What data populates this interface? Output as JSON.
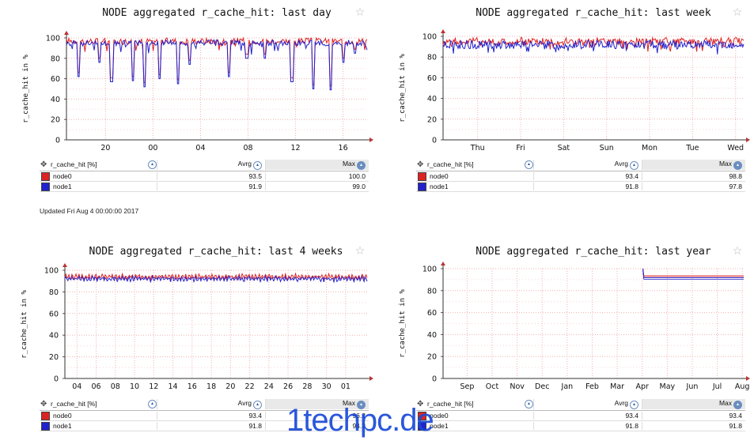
{
  "updated": "Updated Fri Aug 4 00:00:00 2017",
  "watermark": "1techpc.de",
  "legend_header": {
    "metric": "r_cache_hit [%]",
    "avg": "Avrg",
    "max": "Max"
  },
  "chart_data": [
    {
      "type": "line",
      "title": "NODE aggregated r_cache_hit: last day",
      "ylabel": "r_cache_hit in %",
      "ylim": [
        0,
        100
      ],
      "yticks": [
        "0",
        "20",
        "40",
        "60",
        "80",
        "100"
      ],
      "xticks": [
        "20",
        "00",
        "04",
        "08",
        "12",
        "16"
      ],
      "grid": true,
      "series": [
        {
          "name": "node0",
          "color": "#dd2222",
          "avg": "93.5",
          "max": "100.0",
          "base": 97,
          "lows": [
            [
              0.04,
              62
            ],
            [
              0.11,
              76
            ],
            [
              0.15,
              57
            ],
            [
              0.22,
              58
            ],
            [
              0.26,
              52
            ],
            [
              0.31,
              60
            ],
            [
              0.37,
              55
            ],
            [
              0.41,
              74
            ],
            [
              0.54,
              62
            ],
            [
              0.6,
              80
            ],
            [
              0.66,
              80
            ],
            [
              0.75,
              57
            ],
            [
              0.82,
              50
            ],
            [
              0.88,
              49
            ],
            [
              0.92,
              76
            ],
            [
              0.96,
              85
            ]
          ]
        },
        {
          "name": "node1",
          "color": "#2222cc",
          "avg": "91.9",
          "max": "99.0",
          "base": 95,
          "lows": [
            [
              0.04,
              62
            ],
            [
              0.11,
              76
            ],
            [
              0.15,
              57
            ],
            [
              0.22,
              58
            ],
            [
              0.26,
              52
            ],
            [
              0.31,
              60
            ],
            [
              0.37,
              55
            ],
            [
              0.41,
              74
            ],
            [
              0.54,
              62
            ],
            [
              0.6,
              80
            ],
            [
              0.66,
              80
            ],
            [
              0.75,
              57
            ],
            [
              0.82,
              50
            ],
            [
              0.88,
              49
            ],
            [
              0.92,
              76
            ],
            [
              0.96,
              85
            ]
          ]
        }
      ]
    },
    {
      "type": "line",
      "title": "NODE aggregated r_cache_hit: last week",
      "ylabel": "r_cache_hit in %",
      "ylim": [
        0,
        100
      ],
      "yticks": [
        "0",
        "20",
        "40",
        "60",
        "80",
        "100"
      ],
      "xticks": [
        "Thu",
        "Fri",
        "Sat",
        "Sun",
        "Mon",
        "Tue",
        "Wed"
      ],
      "grid": true,
      "series": [
        {
          "name": "node0",
          "color": "#dd2222",
          "avg": "93.4",
          "max": "98.8",
          "base": 95,
          "lows": []
        },
        {
          "name": "node1",
          "color": "#2222cc",
          "avg": "91.8",
          "max": "97.8",
          "base": 92,
          "lows": []
        }
      ]
    },
    {
      "type": "line",
      "title": "NODE aggregated r_cache_hit: last 4 weeks",
      "ylabel": "r_cache_hit in %",
      "ylim": [
        0,
        100
      ],
      "yticks": [
        "0",
        "20",
        "40",
        "60",
        "80",
        "100"
      ],
      "xticks": [
        "04",
        "06",
        "08",
        "10",
        "12",
        "14",
        "16",
        "18",
        "20",
        "22",
        "24",
        "26",
        "28",
        "30",
        "01"
      ],
      "grid": true,
      "series": [
        {
          "name": "node0",
          "color": "#dd2222",
          "avg": "93.4",
          "max": "96.2",
          "base": 94,
          "lows": []
        },
        {
          "name": "node1",
          "color": "#2222cc",
          "avg": "91.8",
          "max": "94.2",
          "base": 92,
          "lows": []
        }
      ]
    },
    {
      "type": "line",
      "title": "NODE aggregated r_cache_hit: last year",
      "ylabel": "r_cache_hit in %",
      "ylim": [
        0,
        100
      ],
      "yticks": [
        "0",
        "20",
        "40",
        "60",
        "80",
        "100"
      ],
      "xticks": [
        "Sep",
        "Oct",
        "Nov",
        "Dec",
        "Jan",
        "Feb",
        "Mar",
        "Apr",
        "May",
        "Jun",
        "Jul",
        "Aug"
      ],
      "grid": true,
      "series": [
        {
          "name": "node0",
          "color": "#dd2222",
          "avg": "93.4",
          "max": "93.4",
          "base": 93.4,
          "lows": []
        },
        {
          "name": "node1",
          "color": "#2222cc",
          "avg": "91.8",
          "max": "91.8",
          "base": 91.8,
          "lows": []
        }
      ]
    }
  ]
}
